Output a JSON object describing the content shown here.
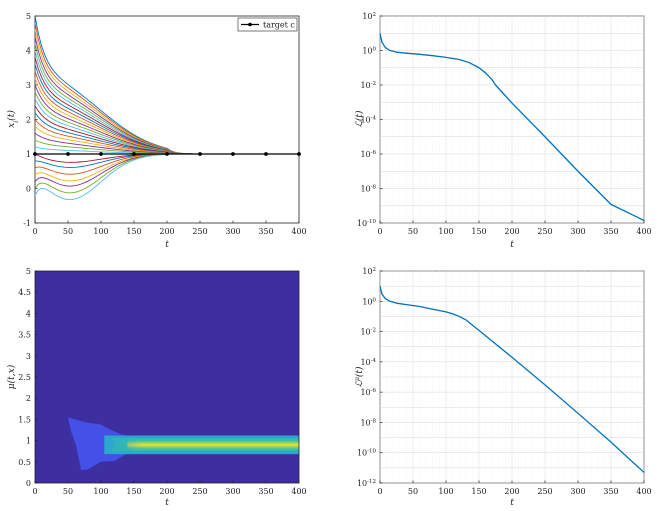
{
  "chart_data": [
    {
      "type": "line",
      "xlabel": "t",
      "ylabel": "x_i(t)",
      "xlim": [
        0,
        400
      ],
      "ylim": [
        -1,
        5
      ],
      "xticks": [
        "0",
        "50",
        "100",
        "150",
        "200",
        "250",
        "300",
        "350",
        "400"
      ],
      "yticks": [
        "-1",
        "0",
        "1",
        "2",
        "3",
        "4",
        "5"
      ],
      "legend": {
        "label": "target c",
        "position": "top-right"
      },
      "target": {
        "x": [
          0,
          50,
          100,
          150,
          200,
          250,
          300,
          350,
          400
        ],
        "y": [
          1,
          1,
          1,
          1,
          1,
          1,
          1,
          1,
          1
        ]
      },
      "trajectories_initial_values": [
        5.0,
        4.8,
        4.6,
        4.4,
        4.2,
        4.0,
        3.8,
        3.6,
        3.4,
        3.2,
        3.0,
        2.8,
        2.6,
        2.4,
        2.2,
        2.0,
        1.8,
        1.6,
        1.4,
        1.2,
        1.0,
        0.8,
        0.6,
        0.4,
        0.2,
        0.0,
        -0.2
      ],
      "trajectories_min_values": [
        null,
        null,
        null,
        null,
        null,
        null,
        null,
        null,
        null,
        null,
        null,
        null,
        null,
        null,
        null,
        null,
        null,
        null,
        null,
        null,
        0.75,
        0.6,
        0.4,
        0.2,
        0.05,
        -0.15,
        -0.35
      ],
      "grid": false
    },
    {
      "type": "line",
      "xlabel": "t",
      "ylabel": "L(t)",
      "yscale": "log",
      "xlim": [
        0,
        400
      ],
      "ylim": [
        1e-10,
        100
      ],
      "xticks": [
        "0",
        "50",
        "100",
        "150",
        "200",
        "250",
        "300",
        "350",
        "400"
      ],
      "yticks": [
        "10^2",
        "10^0",
        "10^-2",
        "10^-4",
        "10^-6",
        "10^-8",
        "10^-10"
      ],
      "series": [
        {
          "x": [
            0,
            3,
            8,
            15,
            25,
            40,
            60,
            80,
            100,
            120,
            135,
            150,
            160,
            170,
            175,
            200,
            250,
            300,
            350,
            400
          ],
          "y": [
            10,
            3,
            1.5,
            1.0,
            0.8,
            0.7,
            0.6,
            0.5,
            0.4,
            0.3,
            0.2,
            0.1,
            0.05,
            0.02,
            0.01,
            0.0009,
            1e-05,
            1e-07,
            1.2e-09,
            1.4e-10
          ]
        }
      ],
      "grid": true
    },
    {
      "type": "heatmap",
      "xlabel": "t",
      "ylabel": "μ(t,x)",
      "xlim": [
        0,
        400
      ],
      "ylim": [
        0,
        5
      ],
      "xticks": [
        "0",
        "50",
        "100",
        "150",
        "200",
        "250",
        "300",
        "350",
        "400"
      ],
      "yticks": [
        "0",
        "0.5",
        "1",
        "1.5",
        "2",
        "2.5",
        "3",
        "3.5",
        "4",
        "4.5",
        "5"
      ],
      "colors": {
        "background": "#3d2f9f",
        "low": "#4450e8",
        "mid": "#2ea6cf",
        "band": "#36c3a4",
        "high": "#f0e02a"
      },
      "grid": false
    },
    {
      "type": "line",
      "xlabel": "t",
      "ylabel": "L^μ(t)",
      "yscale": "log",
      "xlim": [
        0,
        400
      ],
      "ylim": [
        1e-12,
        100
      ],
      "xticks": [
        "0",
        "50",
        "100",
        "150",
        "200",
        "250",
        "300",
        "350",
        "400"
      ],
      "yticks": [
        "10^2",
        "10^0",
        "10^-2",
        "10^-4",
        "10^-6",
        "10^-8",
        "10^-10",
        "10^-12"
      ],
      "series": [
        {
          "x": [
            0,
            3,
            8,
            15,
            25,
            40,
            60,
            80,
            100,
            110,
            120,
            130,
            135,
            150,
            200,
            250,
            300,
            350,
            400
          ],
          "y": [
            10,
            3,
            1.5,
            1.0,
            0.75,
            0.6,
            0.45,
            0.3,
            0.2,
            0.15,
            0.1,
            0.06,
            0.04,
            0.012,
            0.0002,
            3e-06,
            4e-08,
            5e-10,
            5e-12
          ]
        }
      ],
      "grid": true
    }
  ]
}
